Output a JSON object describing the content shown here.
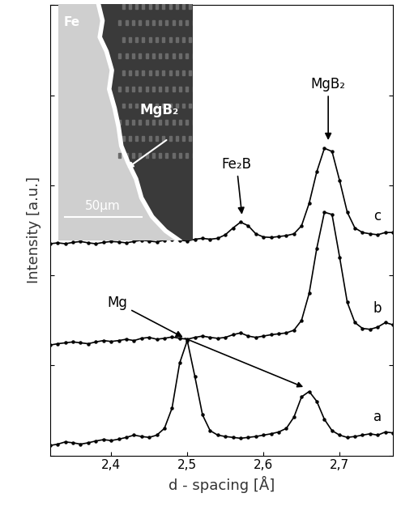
{
  "chart_data": {
    "type": "line",
    "x_label": "d - spacing [Å]",
    "y_label": "Intensity [a.u.]",
    "xlim": [
      2.32,
      2.77
    ],
    "xticks": [
      {
        "value": 2.4,
        "label": "2,4"
      },
      {
        "value": 2.5,
        "label": "2,5"
      },
      {
        "value": 2.6,
        "label": "2,6"
      },
      {
        "value": 2.7,
        "label": "2,7"
      }
    ],
    "ylim": [
      0,
      10
    ],
    "yticks": [
      0,
      2,
      4,
      6,
      8,
      10
    ],
    "tick_labels": "x",
    "grid": false,
    "x": [
      2.32,
      2.33,
      2.34,
      2.35,
      2.36,
      2.37,
      2.38,
      2.39,
      2.4,
      2.41,
      2.42,
      2.43,
      2.44,
      2.45,
      2.46,
      2.47,
      2.48,
      2.49,
      2.5,
      2.51,
      2.52,
      2.53,
      2.54,
      2.55,
      2.56,
      2.57,
      2.58,
      2.59,
      2.6,
      2.61,
      2.62,
      2.63,
      2.64,
      2.65,
      2.66,
      2.67,
      2.68,
      2.69,
      2.7,
      2.71,
      2.72,
      2.73,
      2.74,
      2.75,
      2.76,
      2.77
    ],
    "series": [
      {
        "name": "a",
        "color": "#000000",
        "marker": "o",
        "line_style": "solid",
        "values": [
          0.22,
          0.25,
          0.3,
          0.28,
          0.25,
          0.28,
          0.32,
          0.35,
          0.33,
          0.36,
          0.4,
          0.45,
          0.42,
          0.4,
          0.45,
          0.6,
          1.05,
          2.05,
          2.55,
          1.75,
          0.9,
          0.55,
          0.45,
          0.42,
          0.4,
          0.38,
          0.4,
          0.42,
          0.45,
          0.48,
          0.52,
          0.6,
          0.85,
          1.3,
          1.42,
          1.2,
          0.8,
          0.55,
          0.45,
          0.4,
          0.42,
          0.45,
          0.48,
          0.45,
          0.52,
          0.5
        ]
      },
      {
        "name": "b",
        "color": "#000000",
        "marker": "o",
        "line_style": "solid",
        "values": [
          2.45,
          2.48,
          2.5,
          2.52,
          2.5,
          2.48,
          2.52,
          2.55,
          2.53,
          2.55,
          2.58,
          2.55,
          2.6,
          2.62,
          2.58,
          2.6,
          2.63,
          2.6,
          2.58,
          2.62,
          2.65,
          2.62,
          2.6,
          2.62,
          2.68,
          2.72,
          2.65,
          2.62,
          2.65,
          2.68,
          2.7,
          2.72,
          2.78,
          3.0,
          3.6,
          4.6,
          5.4,
          5.35,
          4.4,
          3.4,
          2.95,
          2.82,
          2.8,
          2.85,
          2.95,
          2.9
        ]
      },
      {
        "name": "c",
        "color": "#000000",
        "marker": "o",
        "line_style": "solid",
        "values": [
          4.7,
          4.72,
          4.7,
          4.73,
          4.75,
          4.72,
          4.7,
          4.73,
          4.75,
          4.74,
          4.72,
          4.75,
          4.78,
          4.76,
          4.74,
          4.78,
          4.8,
          4.78,
          4.76,
          4.8,
          4.82,
          4.8,
          4.82,
          4.9,
          5.05,
          5.18,
          5.1,
          4.92,
          4.85,
          4.84,
          4.86,
          4.88,
          4.92,
          5.1,
          5.6,
          6.3,
          6.82,
          6.75,
          6.1,
          5.4,
          5.05,
          4.95,
          4.92,
          4.9,
          4.95,
          4.95
        ]
      }
    ],
    "annotations": [
      {
        "text": "MgB₂",
        "targets": [
          [
            2.685,
            6.95
          ]
        ]
      },
      {
        "text": "Fe₂B",
        "targets": [
          [
            2.572,
            5.3
          ]
        ]
      },
      {
        "text": "Mg",
        "targets": [
          [
            2.497,
            2.6
          ],
          [
            2.655,
            1.5
          ]
        ]
      }
    ],
    "inset": {
      "labels": [
        "Fe",
        "MgB₂"
      ],
      "scale_bar": "50μm"
    }
  }
}
